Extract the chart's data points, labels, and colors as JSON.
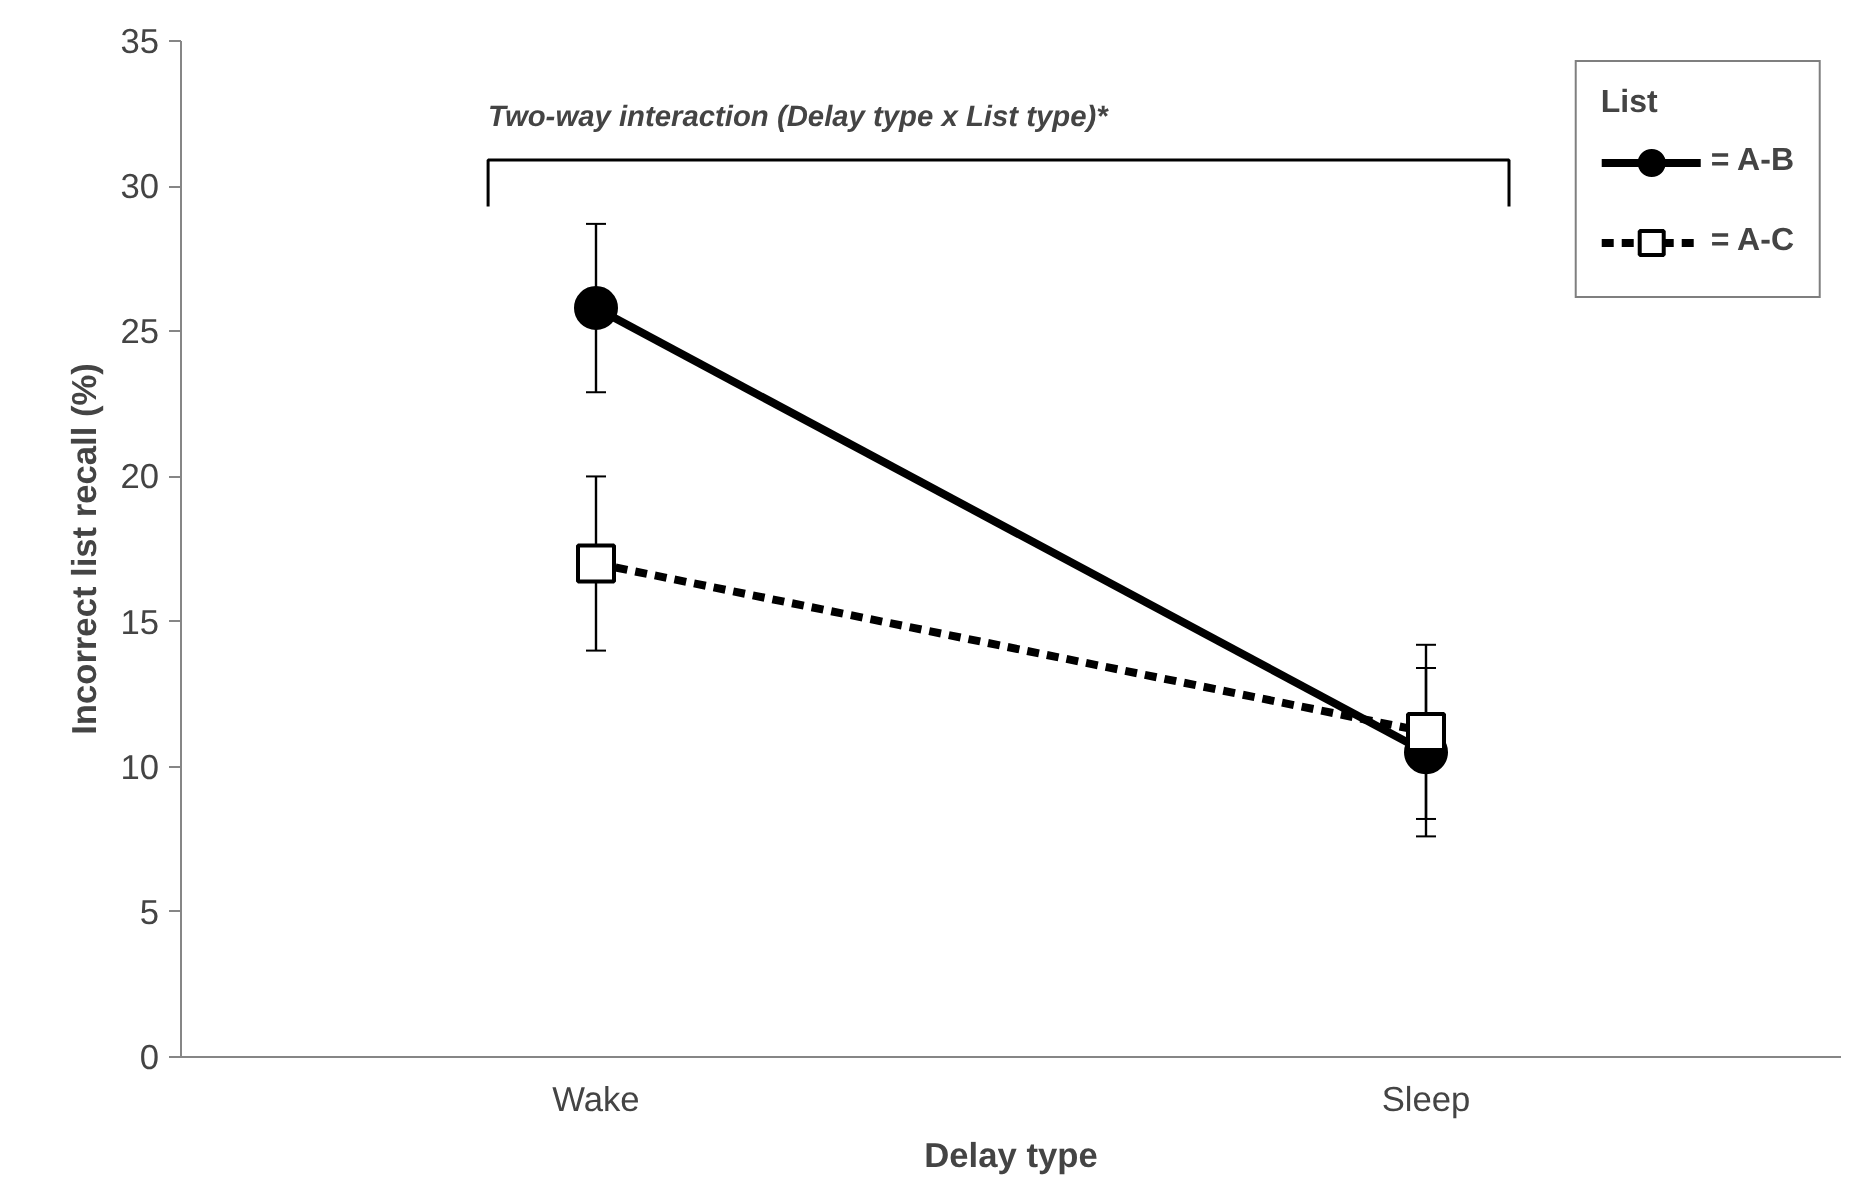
{
  "chart_data": {
    "type": "line",
    "categories": [
      "Wake",
      "Sleep"
    ],
    "xlabel": "Delay type",
    "ylabel": "Incorrect list recall (%)",
    "legend_title": "List",
    "legend": "top right",
    "grid": false,
    "ylim": [
      0,
      35
    ],
    "yticks": [
      0,
      5,
      10,
      15,
      20,
      25,
      30,
      35
    ],
    "annotations": [
      "Two-way interaction (Delay type x List type)*"
    ],
    "series": [
      {
        "name": "= A-B",
        "color": "#000000",
        "values": [
          25.8,
          10.5
        ],
        "errors": [
          2.9,
          2.9
        ],
        "marker": "circle",
        "line_style": "solid"
      },
      {
        "name": "= A-C",
        "color": "#000000",
        "values": [
          17.0,
          11.2
        ],
        "errors": [
          3.0,
          3.0
        ],
        "marker": "square",
        "line_style": "dashed"
      }
    ]
  }
}
